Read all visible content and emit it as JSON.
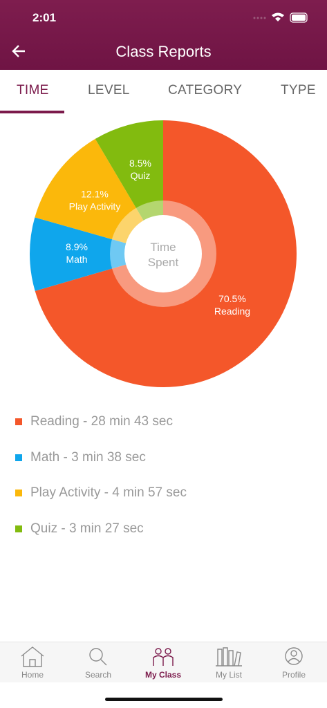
{
  "status_bar": {
    "time": "2:01"
  },
  "header": {
    "title": "Class Reports"
  },
  "tabs": [
    "TIME",
    "LEVEL",
    "CATEGORY",
    "TYPE"
  ],
  "chart_data": {
    "type": "pie",
    "categories": [
      "Reading",
      "Math",
      "Play Activity",
      "Quiz"
    ],
    "values": [
      70.5,
      8.9,
      12.1,
      8.5
    ],
    "value_labels": [
      "70.5%",
      "8.9%",
      "12.1%",
      "8.5%"
    ],
    "colors": [
      "#f4572a",
      "#0fa6ec",
      "#fbb80b",
      "#82bb0f"
    ],
    "center_label": "Time Spent"
  },
  "legend": [
    "Reading - 28 min 43 sec",
    "Math - 3 min 38 sec",
    "Play Activity - 4 min 57 sec",
    "Quiz - 3 min 27 sec"
  ],
  "tab_bar": [
    "Home",
    "Search",
    "My Class",
    "My List",
    "Profile"
  ]
}
